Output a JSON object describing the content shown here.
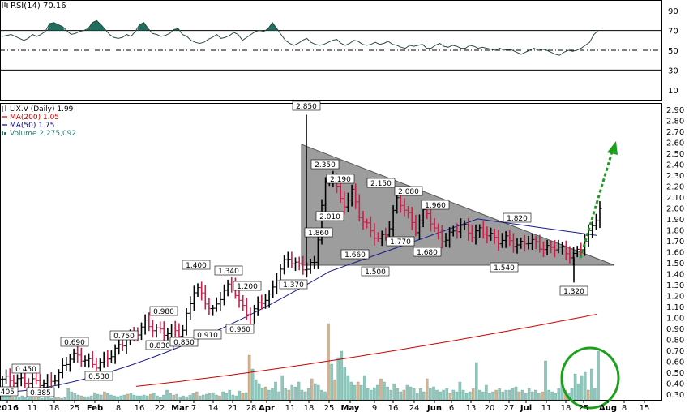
{
  "rsi_panel": {
    "label": "RSI(14) 70.16",
    "ticks": [
      {
        "v": 90,
        "label": "90"
      },
      {
        "v": 70,
        "label": "70"
      },
      {
        "v": 50,
        "label": "50"
      },
      {
        "v": 30,
        "label": "30"
      },
      {
        "v": 10,
        "label": "10"
      }
    ],
    "line_color": "#2b4b40",
    "fill_color": "#1f6e5e"
  },
  "price_panel": {
    "legend": [
      {
        "text": "LIX.V (Daily) 1.99",
        "color": "#000000",
        "icon": "bar-chart-icon"
      },
      {
        "text": "MA(200) 1.05",
        "color": "#cc0000",
        "icon": "line-icon"
      },
      {
        "text": "MA(50) 1.75",
        "color": "#00007a",
        "icon": "line-icon"
      },
      {
        "text": "Volume 2,275,092",
        "color": "#2a7a6a",
        "icon": "volume-icon"
      }
    ],
    "y_ticks": [
      "2.90",
      "2.80",
      "2.70",
      "2.60",
      "2.50",
      "2.40",
      "2.30",
      "2.20",
      "2.10",
      "2.00",
      "1.90",
      "1.80",
      "1.70",
      "1.60",
      "1.50",
      "1.40",
      "1.30",
      "1.20",
      "1.10",
      "1.00",
      "0.90",
      "0.80",
      "0.70",
      "0.60",
      "0.50",
      "0.40",
      "0.30"
    ],
    "x_ticks": [
      {
        "label": "2016",
        "bold": true
      },
      {
        "label": "11",
        "bold": false
      },
      {
        "label": "18",
        "bold": false
      },
      {
        "label": "25",
        "bold": false
      },
      {
        "label": "Feb",
        "bold": true
      },
      {
        "label": "8",
        "bold": false
      },
      {
        "label": "16",
        "bold": false
      },
      {
        "label": "22",
        "bold": false
      },
      {
        "label": "Mar",
        "bold": true
      },
      {
        "label": "7",
        "bold": false
      },
      {
        "label": "14",
        "bold": false
      },
      {
        "label": "21",
        "bold": false
      },
      {
        "label": "28",
        "bold": false
      },
      {
        "label": "Apr",
        "bold": true
      },
      {
        "label": "11",
        "bold": false
      },
      {
        "label": "18",
        "bold": false
      },
      {
        "label": "25",
        "bold": false
      },
      {
        "label": "May",
        "bold": true
      },
      {
        "label": "9",
        "bold": false
      },
      {
        "label": "16",
        "bold": false
      },
      {
        "label": "24",
        "bold": false
      },
      {
        "label": "Jun",
        "bold": true
      },
      {
        "label": "6",
        "bold": false
      },
      {
        "label": "13",
        "bold": false
      },
      {
        "label": "20",
        "bold": false
      },
      {
        "label": "27",
        "bold": false
      },
      {
        "label": "Jul",
        "bold": true
      },
      {
        "label": "11",
        "bold": false
      },
      {
        "label": "18",
        "bold": false
      },
      {
        "label": "25",
        "bold": false
      },
      {
        "label": "Aug",
        "bold": true
      },
      {
        "label": "8",
        "bold": false
      },
      {
        "label": "15",
        "bold": false
      }
    ],
    "colors": {
      "up_bar": "#000000",
      "down_bar": "#cc1f4a",
      "ma200": "#cc0000",
      "ma50": "#1a1a8a",
      "triangle_fill": "#8c8c8c",
      "arrow": "#1aa01a",
      "circle": "#1aa01a",
      "volume_up": "#8fc7bd",
      "volume_down": "#d9b089"
    }
  },
  "chart_data": {
    "type": "line",
    "title": "LIX.V (Daily)",
    "price_labels": [
      "0.405",
      "0.450",
      "0.385",
      "0.690",
      "0.530",
      "0.750",
      "0.830",
      "0.980",
      "0.850",
      "1.400",
      "0.910",
      "1.340",
      "0.960",
      "1.200",
      "1.370",
      "2.850",
      "2.350",
      "1.860",
      "2.190",
      "2.010",
      "1.660",
      "2.150",
      "1.500",
      "2.080",
      "1.770",
      "1.680",
      "1.960",
      "1.820",
      "1.540",
      "1.320"
    ],
    "price_series": {
      "name": "LIX.V",
      "dates": [
        "2016-01-04",
        "2016-01-11",
        "2016-01-18",
        "2016-01-25",
        "2016-02-01",
        "2016-02-08",
        "2016-02-16",
        "2016-02-22",
        "2016-02-29",
        "2016-03-07",
        "2016-03-14",
        "2016-03-21",
        "2016-03-28",
        "2016-04-04",
        "2016-04-11",
        "2016-04-18",
        "2016-04-25",
        "2016-05-02",
        "2016-05-09",
        "2016-05-16",
        "2016-05-24",
        "2016-05-30",
        "2016-06-06",
        "2016-06-13",
        "2016-06-20",
        "2016-06-27",
        "2016-07-04",
        "2016-07-11",
        "2016-07-18",
        "2016-07-25",
        "2016-08-01"
      ],
      "close": [
        0.44,
        0.42,
        0.4,
        0.66,
        0.56,
        0.72,
        0.82,
        0.95,
        0.87,
        1.3,
        1.05,
        1.2,
        1.1,
        1.4,
        1.5,
        2.2,
        2.1,
        1.8,
        1.85,
        1.95,
        1.85,
        1.8,
        1.8,
        1.74,
        1.7,
        1.62,
        1.7,
        1.64,
        1.55,
        1.7,
        1.99
      ]
    },
    "ma200": {
      "name": "MA(200)",
      "last": 1.05
    },
    "ma50": {
      "name": "MA(50)",
      "last": 1.75
    },
    "volume": {
      "name": "Volume",
      "last": 2275092
    },
    "rsi": {
      "name": "RSI(14)",
      "last": 70.16
    },
    "ylim": [
      0.25,
      2.95
    ],
    "rsi_ylim": [
      0,
      100
    ]
  }
}
